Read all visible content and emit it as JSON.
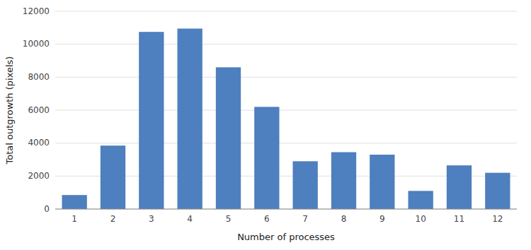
{
  "chart_data": {
    "type": "bar",
    "categories": [
      1,
      2,
      3,
      4,
      5,
      6,
      7,
      8,
      9,
      10,
      11,
      12
    ],
    "values": [
      850,
      3850,
      10750,
      10950,
      8600,
      6200,
      2900,
      3450,
      3300,
      1100,
      2650,
      2200
    ],
    "color": "#4e7fbe",
    "xlabel": "Number of processes",
    "ylabel": "Total outgrowth (pixels)",
    "ylim": [
      0,
      12000
    ],
    "yticks": [
      0,
      2000,
      4000,
      6000,
      8000,
      10000,
      12000
    ],
    "grid": true
  }
}
